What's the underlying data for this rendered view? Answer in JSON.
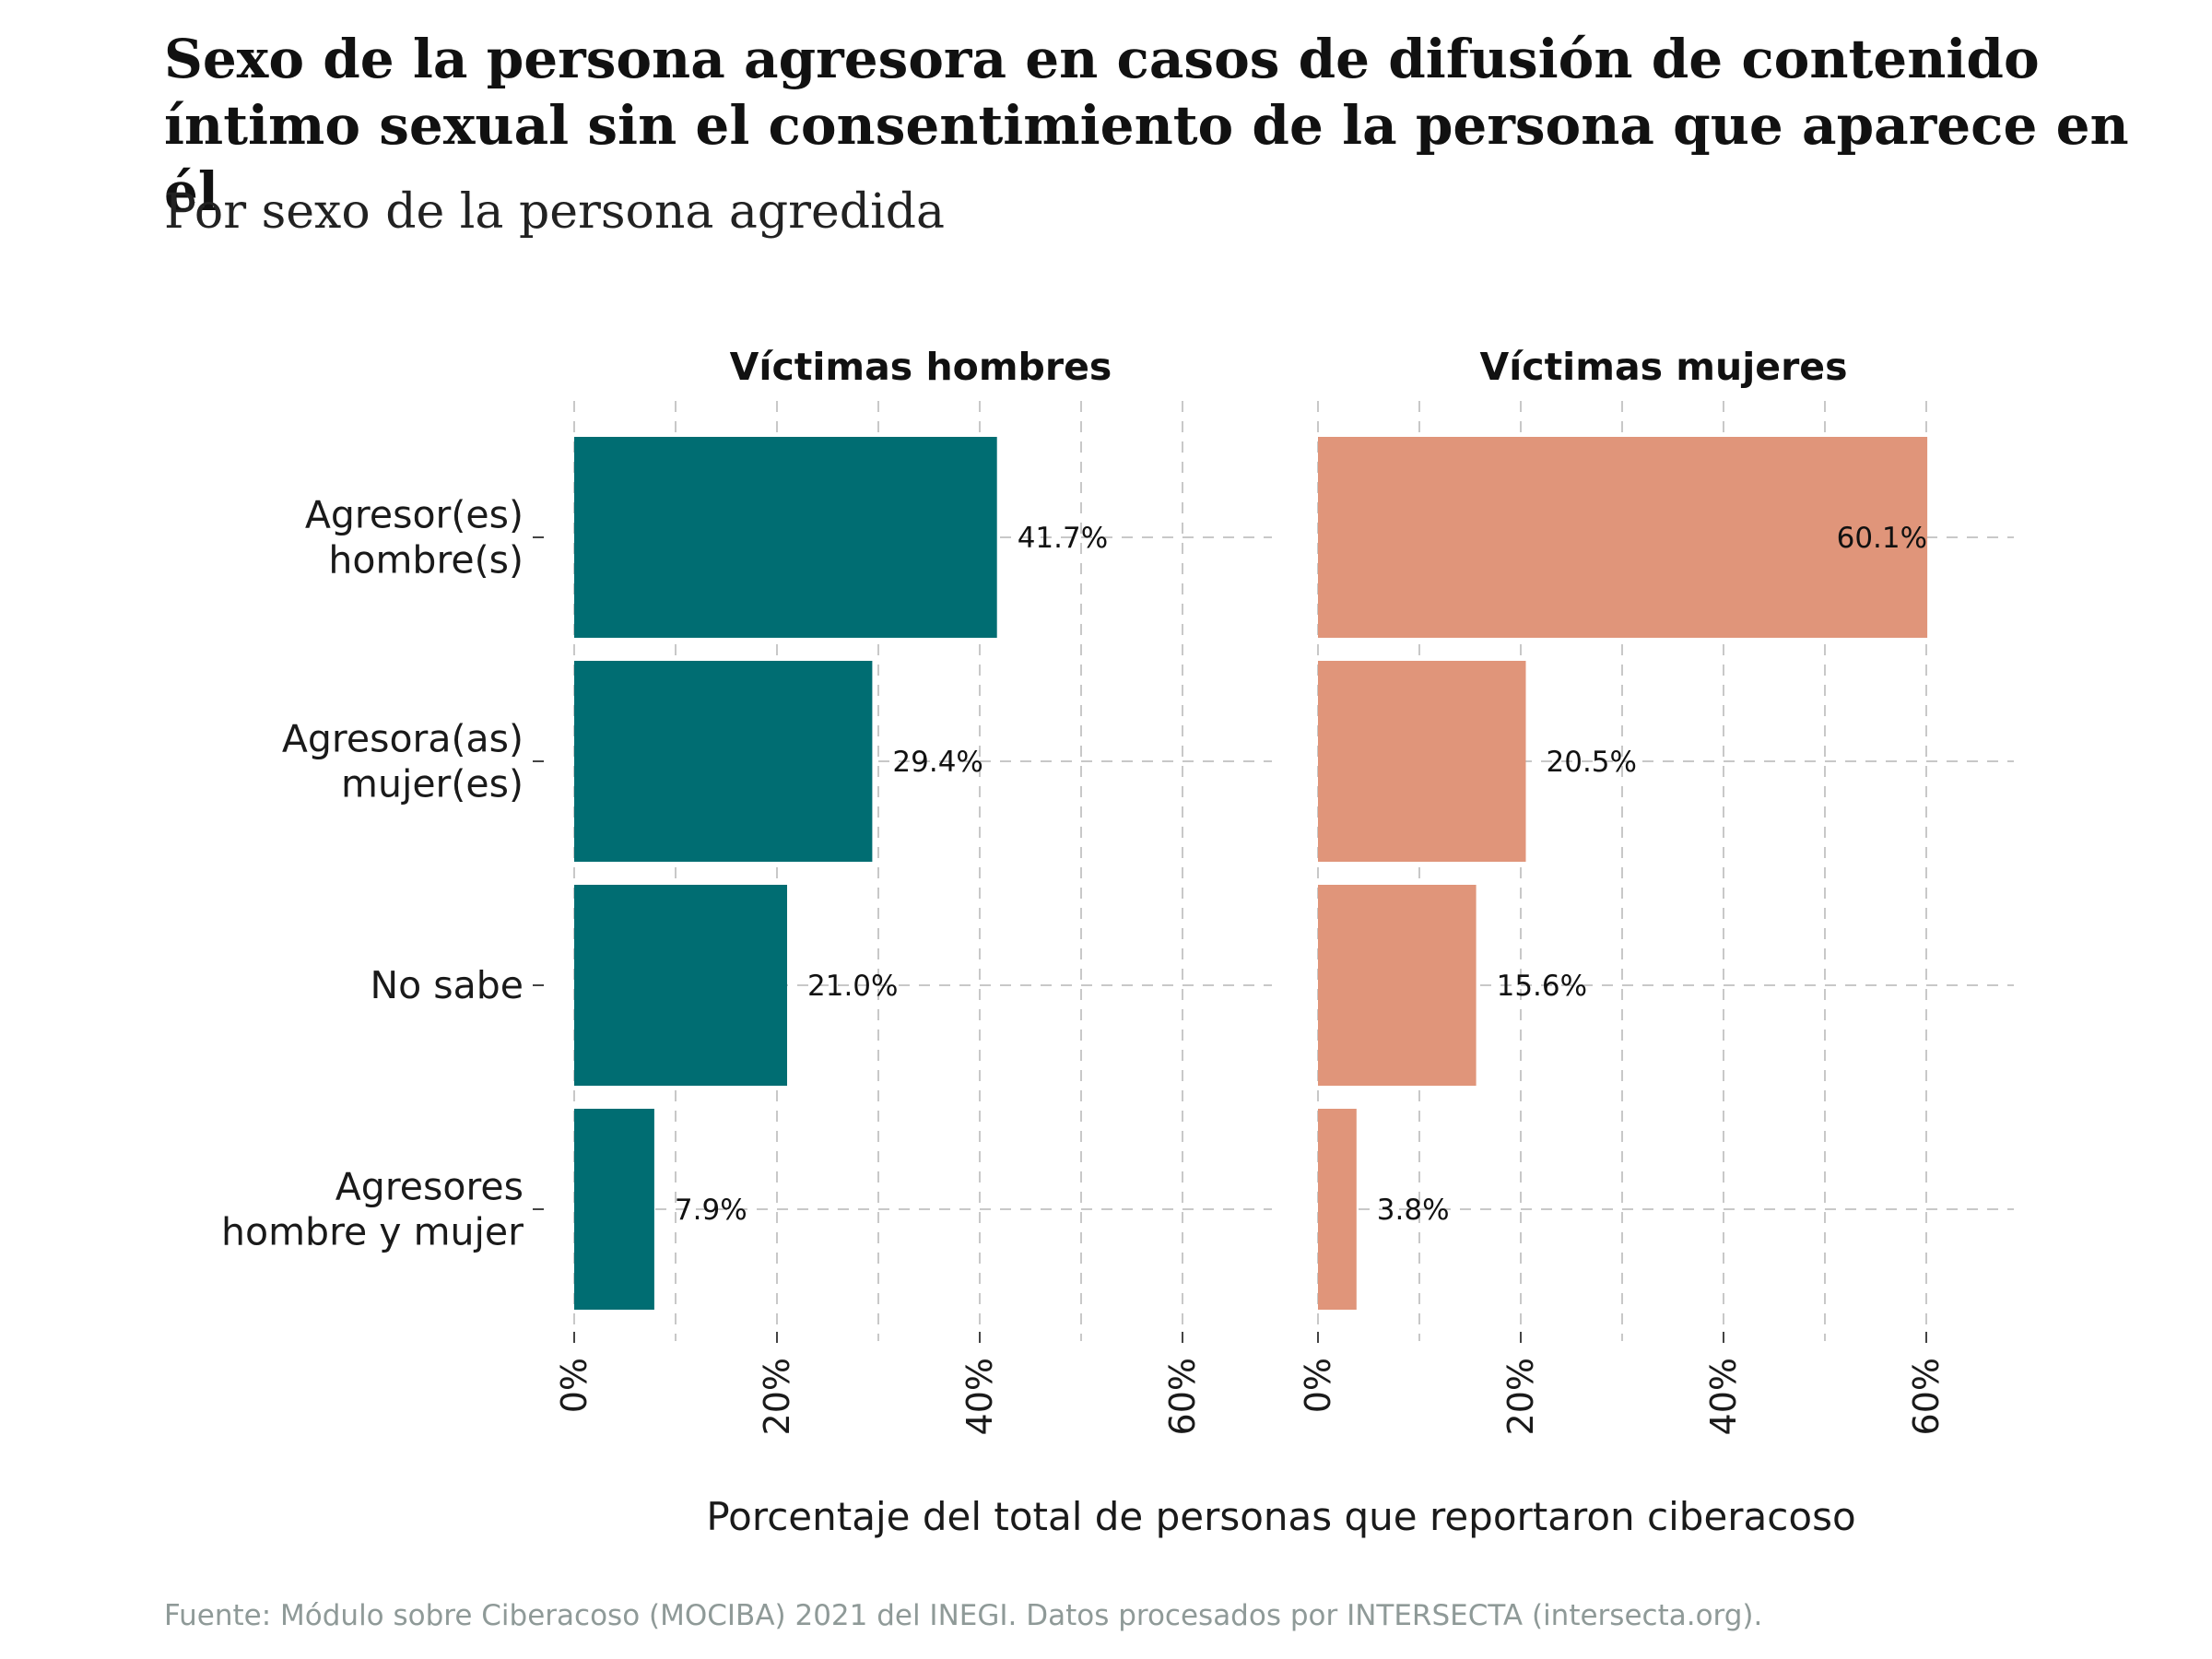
{
  "title": "Sexo de la persona agresora en casos de difusión de contenido íntimo sexual sin el consentimiento de la persona que aparece en él",
  "subtitle": "Por sexo de la persona agredida",
  "source": "Fuente: Módulo sobre Ciberacoso (MOCIBA) 2021 del INEGI. Datos procesados por INTERSECTA (intersecta.org).",
  "chart_data": {
    "type": "bar",
    "orientation": "horizontal",
    "categories": [
      [
        "Agresor(es)",
        "hombre(s)"
      ],
      [
        "Agresora(as)",
        "mujer(es)"
      ],
      [
        "No sabe"
      ],
      [
        "Agresores",
        "hombre y mujer"
      ]
    ],
    "xlabel": "Porcentaje del total de personas que reportaron ciberacoso",
    "xlim": [
      0,
      60
    ],
    "xticks": [
      0,
      20,
      40,
      60
    ],
    "xtick_labels": [
      "0%",
      "20%",
      "40%",
      "60%"
    ],
    "grid": true,
    "series": [
      {
        "name": "Víctimas hombres",
        "color": "#006D72",
        "values": [
          41.7,
          29.4,
          21.0,
          7.9
        ],
        "labels": [
          "41.7%",
          "29.4%",
          "21.0%",
          "7.9%"
        ]
      },
      {
        "name": "Víctimas mujeres",
        "color": "#E0957A",
        "values": [
          60.1,
          20.5,
          15.6,
          3.8
        ],
        "labels": [
          "60.1%",
          "20.5%",
          "15.6%",
          "3.8%"
        ]
      }
    ]
  }
}
